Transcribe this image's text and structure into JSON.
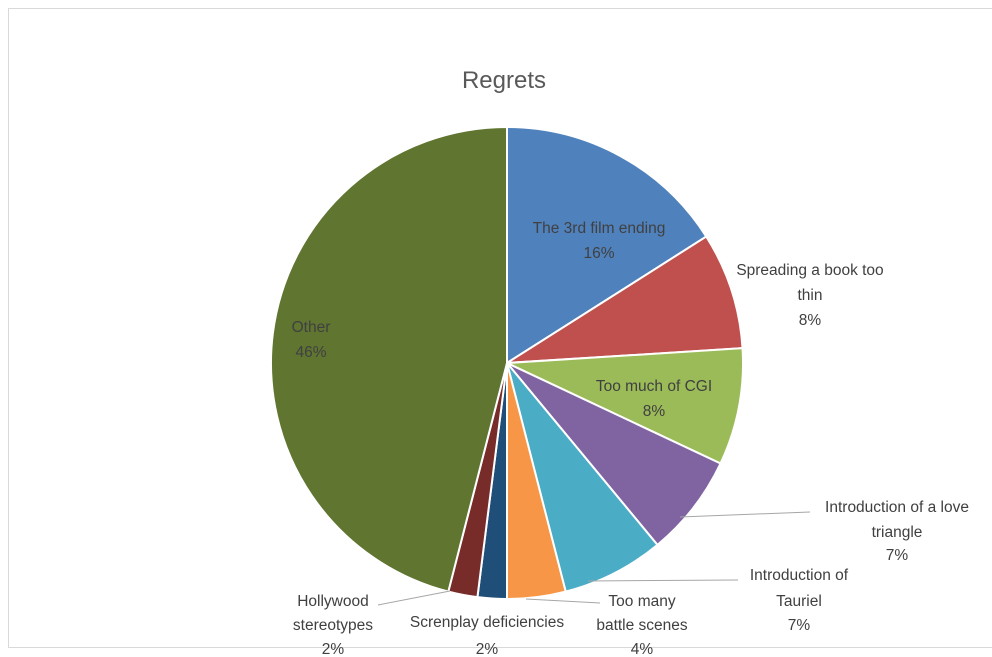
{
  "chart_data": {
    "type": "pie",
    "title": "Regrets",
    "slices": [
      {
        "label": "The 3rd film ending",
        "value": 16,
        "percent_label": "16%",
        "color": "#4f81bd"
      },
      {
        "label": "Spreading a book too thin",
        "value": 8,
        "percent_label": "8%",
        "color": "#c0504d"
      },
      {
        "label": "Too much of CGI",
        "value": 8,
        "percent_label": "8%",
        "color": "#9bbb59"
      },
      {
        "label": "Introduction of a love triangle",
        "value": 7,
        "percent_label": "7%",
        "color": "#8064a2"
      },
      {
        "label": "Introduction of Tauriel",
        "value": 7,
        "percent_label": "7%",
        "color": "#4bacc6"
      },
      {
        "label": "Too many battle scenes",
        "value": 4,
        "percent_label": "4%",
        "color": "#f79646"
      },
      {
        "label": "Screnplay deficiencies",
        "value": 2,
        "percent_label": "2%",
        "color": "#1f4e79"
      },
      {
        "label": "Hollywood stereotypes",
        "value": 2,
        "percent_label": "2%",
        "color": "#772c2a"
      },
      {
        "label": "Other",
        "value": 46,
        "percent_label": "46%",
        "color": "#5f7530"
      }
    ]
  }
}
